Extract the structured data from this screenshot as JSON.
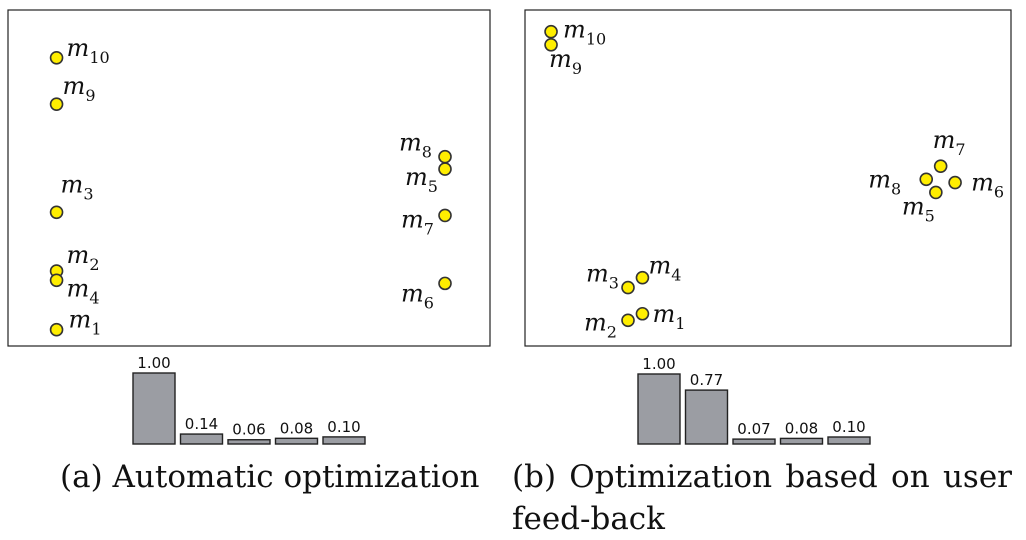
{
  "chart_data": [
    {
      "type": "scatter",
      "caption": "(a) Automatic optimization",
      "points": [
        {
          "label": "m",
          "sub": "10",
          "x": 0.08,
          "y": 0.91
        },
        {
          "label": "m",
          "sub": "9",
          "x": 0.08,
          "y": 0.76
        },
        {
          "label": "m",
          "sub": "8",
          "x": 0.93,
          "y": 0.59
        },
        {
          "label": "m",
          "sub": "5",
          "x": 0.93,
          "y": 0.55
        },
        {
          "label": "m",
          "sub": "3",
          "x": 0.08,
          "y": 0.41
        },
        {
          "label": "m",
          "sub": "7",
          "x": 0.93,
          "y": 0.4
        },
        {
          "label": "m",
          "sub": "2",
          "x": 0.08,
          "y": 0.22
        },
        {
          "label": "m",
          "sub": "4",
          "x": 0.08,
          "y": 0.19
        },
        {
          "label": "m",
          "sub": "6",
          "x": 0.93,
          "y": 0.18
        },
        {
          "label": "m",
          "sub": "1",
          "x": 0.08,
          "y": 0.03
        }
      ],
      "bars": {
        "type": "bar",
        "values": [
          1.0,
          0.14,
          0.06,
          0.08,
          0.1
        ],
        "labels": [
          "1.00",
          "0.14",
          "0.06",
          "0.08",
          "0.10"
        ]
      }
    },
    {
      "type": "scatter",
      "caption": "(b) Optimization based on user feed-back",
      "points": [
        {
          "label": "m",
          "sub": "10",
          "x": 0.05,
          "y": 0.94
        },
        {
          "label": "m",
          "sub": "9",
          "x": 0.05,
          "y": 0.9
        },
        {
          "label": "m",
          "sub": "7",
          "x": 0.86,
          "y": 0.53
        },
        {
          "label": "m",
          "sub": "8",
          "x": 0.83,
          "y": 0.49
        },
        {
          "label": "m",
          "sub": "6",
          "x": 0.89,
          "y": 0.48
        },
        {
          "label": "m",
          "sub": "5",
          "x": 0.85,
          "y": 0.45
        },
        {
          "label": "m",
          "sub": "4",
          "x": 0.24,
          "y": 0.19
        },
        {
          "label": "m",
          "sub": "3",
          "x": 0.21,
          "y": 0.16
        },
        {
          "label": "m",
          "sub": "1",
          "x": 0.24,
          "y": 0.08
        },
        {
          "label": "m",
          "sub": "2",
          "x": 0.21,
          "y": 0.06
        }
      ],
      "bars": {
        "type": "bar",
        "values": [
          1.0,
          0.77,
          0.07,
          0.08,
          0.1
        ],
        "labels": [
          "1.00",
          "0.77",
          "0.07",
          "0.08",
          "0.10"
        ]
      }
    }
  ],
  "captions": {
    "a": "(a) Automatic optimization",
    "b": "(b) Optimization based on user feed-back"
  },
  "colors": {
    "point_fill": "#ffee00",
    "point_stroke": "#333333",
    "bar_fill": "#9b9da3",
    "bar_stroke": "#222222",
    "frame": "#222222"
  }
}
